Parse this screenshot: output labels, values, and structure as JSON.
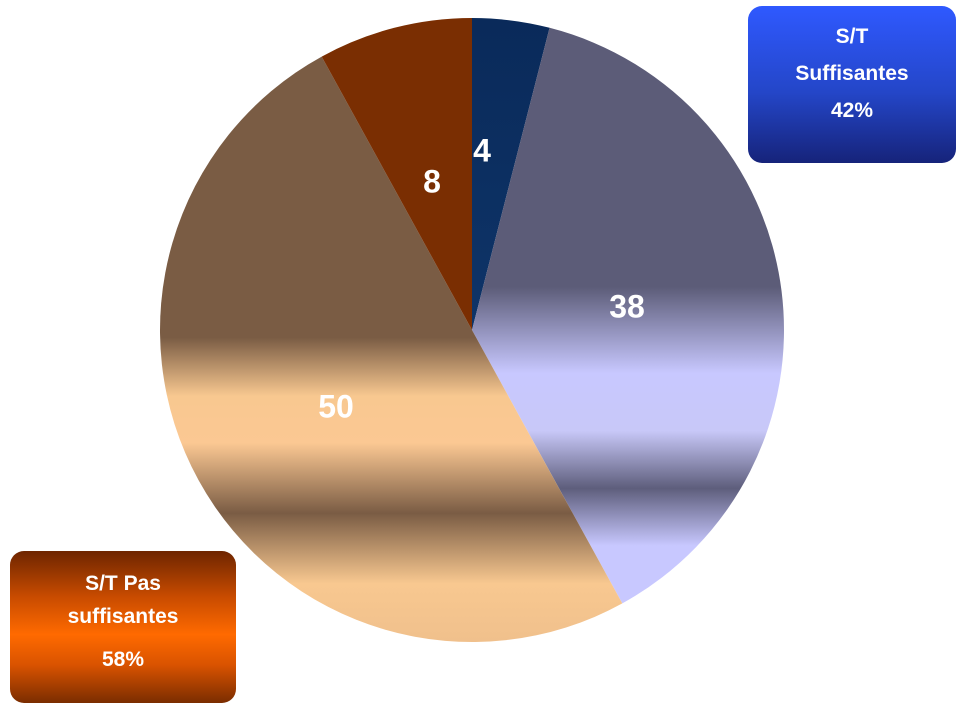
{
  "chart_data": {
    "type": "pie",
    "categories": [
      "4",
      "38",
      "50",
      "8"
    ],
    "values": [
      4,
      38,
      50,
      8
    ],
    "data_labels": [
      "4",
      "38",
      "50",
      "8"
    ],
    "colors": [
      "#0c2d5c",
      "#5e5e7a",
      "#7a5c44",
      "#7a2e02"
    ],
    "start_angle_deg": 0,
    "direction": "clockwise"
  },
  "annotations": {
    "suffisantes": {
      "line1": "S/T",
      "line2": "Suffisantes",
      "percent": "42%",
      "color": "#2446c8"
    },
    "pas_suffisantes": {
      "line1": "S/T Pas",
      "line2": "suffisantes",
      "percent": "58%",
      "color": "#ff6a00"
    }
  }
}
